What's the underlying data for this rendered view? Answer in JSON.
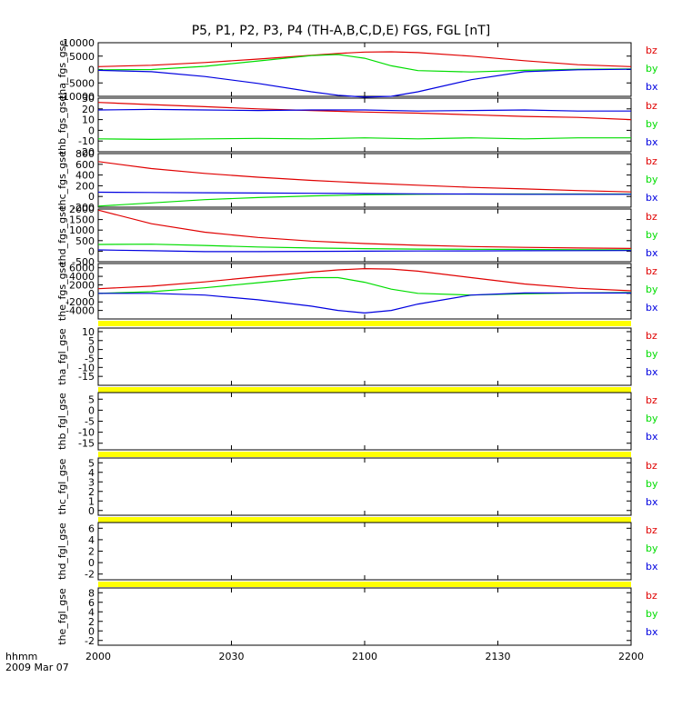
{
  "title": "P5, P1, P2, P3, P4 (TH-A,B,C,D,E) FGS, FGL [nT]",
  "colors": {
    "bz": "#e00000",
    "by": "#00dd00",
    "bx": "#0000e0",
    "flag": "#ffff00",
    "axis": "#000000"
  },
  "x_axis": {
    "label_line1": "hhmm",
    "label_line2": "2009 Mar 07",
    "ticks": [
      "2000",
      "2030",
      "2100",
      "2130",
      "2200"
    ]
  },
  "chart_data": [
    {
      "type": "line",
      "ylabel": "tha_fgs_gse",
      "ylim": [
        -10000,
        10000
      ],
      "yticks": [
        -10000,
        -5000,
        0,
        5000,
        10000
      ],
      "x": [
        0,
        0.1,
        0.2,
        0.3,
        0.4,
        0.45,
        0.5,
        0.55,
        0.6,
        0.7,
        0.8,
        0.9,
        1.0
      ],
      "series": [
        {
          "name": "bz",
          "values": [
            1100,
            1600,
            2600,
            3900,
            5300,
            6000,
            6500,
            6600,
            6300,
            5000,
            3300,
            1800,
            1100
          ]
        },
        {
          "name": "by",
          "values": [
            -100,
            0,
            1200,
            3200,
            5200,
            5600,
            4200,
            1400,
            -400,
            -900,
            -300,
            100,
            200
          ]
        },
        {
          "name": "bx",
          "values": [
            -300,
            -800,
            -2600,
            -5200,
            -8300,
            -9600,
            -10300,
            -10000,
            -8300,
            -3800,
            -800,
            -100,
            100
          ]
        }
      ],
      "legend": [
        "bz",
        "by",
        "bx"
      ],
      "flag_bar": false
    },
    {
      "type": "line",
      "ylabel": "thb_fgs_gse",
      "ylim": [
        -20,
        30
      ],
      "yticks": [
        -20,
        -10,
        0,
        10,
        20,
        30
      ],
      "x": [
        0,
        0.1,
        0.2,
        0.3,
        0.4,
        0.5,
        0.6,
        0.7,
        0.8,
        0.9,
        1.0
      ],
      "series": [
        {
          "name": "bz",
          "values": [
            26,
            24,
            22,
            20,
            18.5,
            17,
            16,
            14.5,
            13,
            12,
            10
          ]
        },
        {
          "name": "by",
          "values": [
            -8,
            -8.5,
            -8,
            -7.5,
            -8,
            -7,
            -8,
            -7,
            -8,
            -7,
            -7
          ]
        },
        {
          "name": "bx",
          "values": [
            19,
            19.5,
            19,
            18.5,
            19,
            19,
            18,
            18.5,
            19,
            18,
            18
          ]
        }
      ],
      "legend": [
        "bz",
        "by",
        "bx"
      ],
      "flag_bar": false
    },
    {
      "type": "line",
      "ylabel": "thc_fgs_gse",
      "ylim": [
        -200,
        800
      ],
      "yticks": [
        -200,
        0,
        200,
        400,
        600,
        800
      ],
      "x": [
        0,
        0.1,
        0.2,
        0.3,
        0.4,
        0.5,
        0.6,
        0.7,
        0.8,
        0.9,
        1.0
      ],
      "series": [
        {
          "name": "bz",
          "values": [
            650,
            520,
            430,
            360,
            300,
            250,
            210,
            170,
            140,
            110,
            85
          ]
        },
        {
          "name": "by",
          "values": [
            -180,
            -120,
            -60,
            -20,
            10,
            30,
            40,
            45,
            45,
            45,
            45
          ]
        },
        {
          "name": "bx",
          "values": [
            80,
            75,
            70,
            65,
            60,
            55,
            50,
            45,
            40,
            40,
            40
          ]
        }
      ],
      "legend": [
        "bz",
        "by",
        "bx"
      ],
      "flag_bar": false
    },
    {
      "type": "line",
      "ylabel": "thd_fgs_gse",
      "ylim": [
        -500,
        2000
      ],
      "yticks": [
        -500,
        0,
        500,
        1000,
        1500,
        2000
      ],
      "x": [
        0,
        0.1,
        0.2,
        0.3,
        0.4,
        0.5,
        0.6,
        0.7,
        0.8,
        0.9,
        1.0
      ],
      "series": [
        {
          "name": "bz",
          "values": [
            1950,
            1300,
            900,
            650,
            480,
            360,
            280,
            220,
            180,
            150,
            130
          ]
        },
        {
          "name": "by",
          "values": [
            320,
            330,
            270,
            200,
            150,
            120,
            100,
            90,
            80,
            70,
            60
          ]
        },
        {
          "name": "bx",
          "values": [
            60,
            20,
            -20,
            -20,
            -10,
            0,
            10,
            15,
            20,
            25,
            30
          ]
        }
      ],
      "legend": [
        "bz",
        "by",
        "bx"
      ],
      "flag_bar": false
    },
    {
      "type": "line",
      "ylabel": "the_fgs_gse",
      "ylim": [
        -6000,
        7000
      ],
      "yticks": [
        -4000,
        -2000,
        0,
        2000,
        4000,
        6000
      ],
      "x": [
        0,
        0.1,
        0.2,
        0.3,
        0.4,
        0.45,
        0.5,
        0.55,
        0.6,
        0.7,
        0.8,
        0.9,
        1.0
      ],
      "series": [
        {
          "name": "bz",
          "values": [
            1100,
            1700,
            2700,
            3900,
            5000,
            5500,
            5800,
            5700,
            5200,
            3700,
            2200,
            1200,
            600
          ]
        },
        {
          "name": "by",
          "values": [
            0,
            400,
            1300,
            2500,
            3700,
            3700,
            2600,
            1000,
            0,
            -400,
            -100,
            100,
            200
          ]
        },
        {
          "name": "bx",
          "values": [
            0,
            0,
            -400,
            -1500,
            -3000,
            -4000,
            -4600,
            -4000,
            -2500,
            -400,
            100,
            100,
            100
          ]
        }
      ],
      "legend": [
        "bz",
        "by",
        "bx"
      ],
      "flag_bar": true
    },
    {
      "type": "line",
      "ylabel": "tha_fgl_gse",
      "ylim": [
        -20,
        12
      ],
      "yticks": [
        -15,
        -10,
        -5,
        0,
        5,
        10
      ],
      "x": [],
      "series": [],
      "legend": [
        "bz",
        "by",
        "bx"
      ],
      "flag_bar": true
    },
    {
      "type": "line",
      "ylabel": "thb_fgl_gse",
      "ylim": [
        -18,
        8
      ],
      "yticks": [
        -15,
        -10,
        -5,
        0,
        5
      ],
      "x": [],
      "series": [],
      "legend": [
        "bz",
        "by",
        "bx"
      ],
      "flag_bar": true
    },
    {
      "type": "line",
      "ylabel": "thc_fgl_gse",
      "ylim": [
        -0.5,
        5.5
      ],
      "yticks": [
        0,
        1,
        2,
        3,
        4,
        5
      ],
      "x": [],
      "series": [],
      "legend": [
        "bz",
        "by",
        "bx"
      ],
      "flag_bar": true
    },
    {
      "type": "line",
      "ylabel": "thd_fgl_gse",
      "ylim": [
        -3,
        7
      ],
      "yticks": [
        -2,
        0,
        2,
        4,
        6
      ],
      "x": [],
      "series": [],
      "legend": [
        "bz",
        "by",
        "bx"
      ],
      "flag_bar": true
    },
    {
      "type": "line",
      "ylabel": "the_fgl_gse",
      "ylim": [
        -3,
        9
      ],
      "yticks": [
        -2,
        0,
        2,
        4,
        6,
        8
      ],
      "x": [],
      "series": [],
      "legend": [
        "bz",
        "by",
        "bx"
      ],
      "flag_bar": false
    }
  ]
}
